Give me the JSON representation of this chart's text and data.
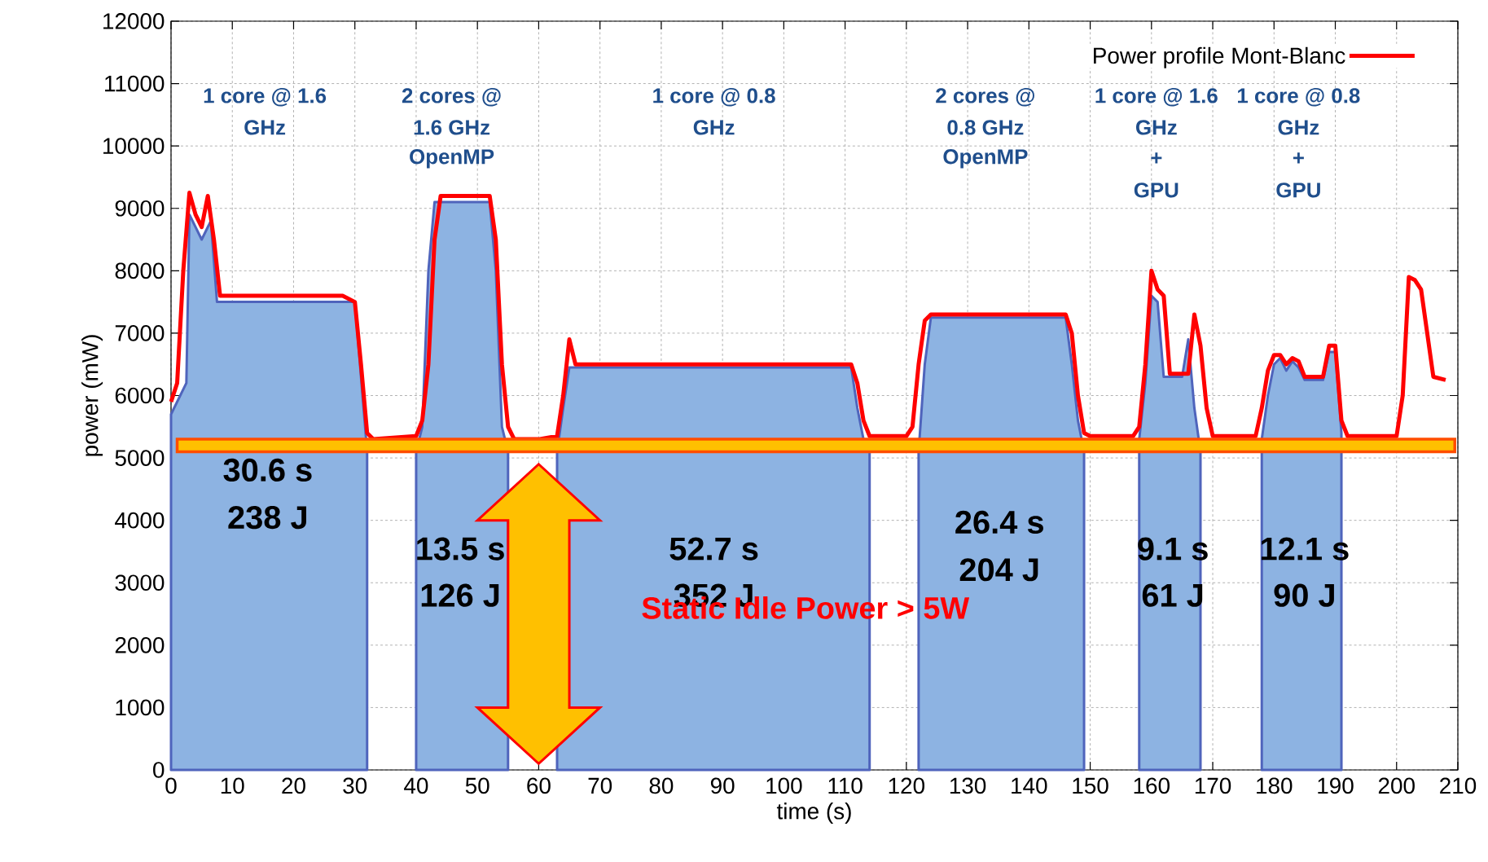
{
  "chart_data": {
    "type": "area",
    "xlabel": "time (s)",
    "ylabel": "power (mW)",
    "xlim": [
      0,
      210
    ],
    "ylim": [
      0,
      12000
    ],
    "xticks": [
      0,
      10,
      20,
      30,
      40,
      50,
      60,
      70,
      80,
      90,
      100,
      110,
      120,
      130,
      140,
      150,
      160,
      170,
      180,
      190,
      200,
      210
    ],
    "yticks": [
      0,
      1000,
      2000,
      3000,
      4000,
      5000,
      6000,
      7000,
      8000,
      9000,
      10000,
      11000,
      12000
    ],
    "grid": true,
    "legend": "top right",
    "series": [
      {
        "color": "#8db3e2",
        "x": [
          0,
          2.5,
          3,
          5,
          6.5,
          7.5,
          30,
          32
        ],
        "values": [
          5700,
          6200,
          8900,
          8500,
          8800,
          7500,
          7500,
          5100
        ]
      },
      {
        "color": "#8db3e2",
        "x": [
          40,
          41,
          42,
          43,
          52,
          53,
          54,
          55
        ],
        "values": [
          5100,
          5500,
          8000,
          9100,
          9100,
          8000,
          5500,
          5100
        ]
      },
      {
        "color": "#8db3e2",
        "x": [
          63,
          64,
          65,
          111,
          112,
          113,
          114
        ],
        "values": [
          5100,
          5800,
          6450,
          6450,
          5800,
          5300,
          5100
        ]
      },
      {
        "color": "#8db3e2",
        "x": [
          122,
          123,
          124,
          146,
          147,
          148,
          149
        ],
        "values": [
          5100,
          6500,
          7250,
          7250,
          6500,
          5600,
          5100
        ]
      },
      {
        "color": "#8db3e2",
        "x": [
          158,
          159,
          160,
          161,
          162,
          165,
          166,
          167,
          168
        ],
        "values": [
          5300,
          6200,
          7600,
          7500,
          6300,
          6300,
          6900,
          5800,
          5100
        ]
      },
      {
        "color": "#8db3e2",
        "x": [
          178,
          179,
          180,
          181,
          182,
          183,
          184,
          185,
          188,
          189,
          190,
          191
        ],
        "values": [
          5300,
          6000,
          6500,
          6600,
          6400,
          6550,
          6450,
          6250,
          6250,
          6700,
          6700,
          5400
        ]
      },
      {
        "name": "Power profile Mont-Blanc",
        "type": "line",
        "color": "#ff0000",
        "x": [
          0,
          1,
          2,
          3,
          4,
          5,
          6,
          7,
          8,
          10,
          20,
          28,
          30,
          31,
          32,
          33,
          40,
          41,
          42,
          43,
          44,
          52,
          53,
          54,
          55,
          56,
          60,
          63,
          64,
          65,
          66,
          70,
          100,
          111,
          112,
          113,
          114,
          120,
          121,
          122,
          123,
          124,
          146,
          147,
          148,
          149,
          150,
          157,
          158,
          159,
          160,
          161,
          162,
          163,
          166,
          167,
          168,
          169,
          170,
          177,
          178,
          179,
          180,
          181,
          182,
          183,
          184,
          185,
          188,
          189,
          190,
          191,
          192,
          200,
          201,
          202,
          203,
          204,
          205,
          206,
          208
        ],
        "values": [
          5900,
          6200,
          8000,
          9250,
          8900,
          8700,
          9200,
          8500,
          7600,
          7600,
          7600,
          7600,
          7500,
          6500,
          5400,
          5300,
          5350,
          5600,
          6500,
          8500,
          9200,
          9200,
          8500,
          6500,
          5500,
          5300,
          5300,
          5350,
          6000,
          6900,
          6500,
          6500,
          6500,
          6500,
          6200,
          5600,
          5350,
          5350,
          5500,
          6500,
          7200,
          7300,
          7300,
          7000,
          6000,
          5400,
          5350,
          5350,
          5500,
          6500,
          8000,
          7700,
          7600,
          6350,
          6350,
          7300,
          6800,
          5800,
          5350,
          5350,
          5800,
          6400,
          6650,
          6650,
          6500,
          6600,
          6550,
          6300,
          6300,
          6800,
          6800,
          5600,
          5350,
          5350,
          6000,
          7900,
          7850,
          7700,
          7000,
          6300,
          6250
        ]
      }
    ],
    "bands": [
      {
        "axis": "y",
        "from": 5100,
        "to": 5300,
        "color": "#ffc000"
      }
    ],
    "annotations": [
      "1 core @ 1.6",
      "GHz",
      "2 cores @",
      "1.6 GHz",
      "OpenMP",
      "1 core @ 0.8",
      "GHz",
      "2 cores @",
      "0.8 GHz",
      "OpenMP",
      "1 core @ 1.6",
      "GHz",
      "+",
      "GPU",
      "1 core @ 0.8",
      "GHz",
      "+",
      "GPU",
      "30.6 s",
      "238 J",
      "13.5 s",
      "126 J",
      "52.7 s",
      "352 J",
      "26.4 s",
      "204 J",
      "9.1 s",
      "61 J",
      "12.1 s",
      "90 J",
      "Static Idle Power > 5W"
    ]
  }
}
